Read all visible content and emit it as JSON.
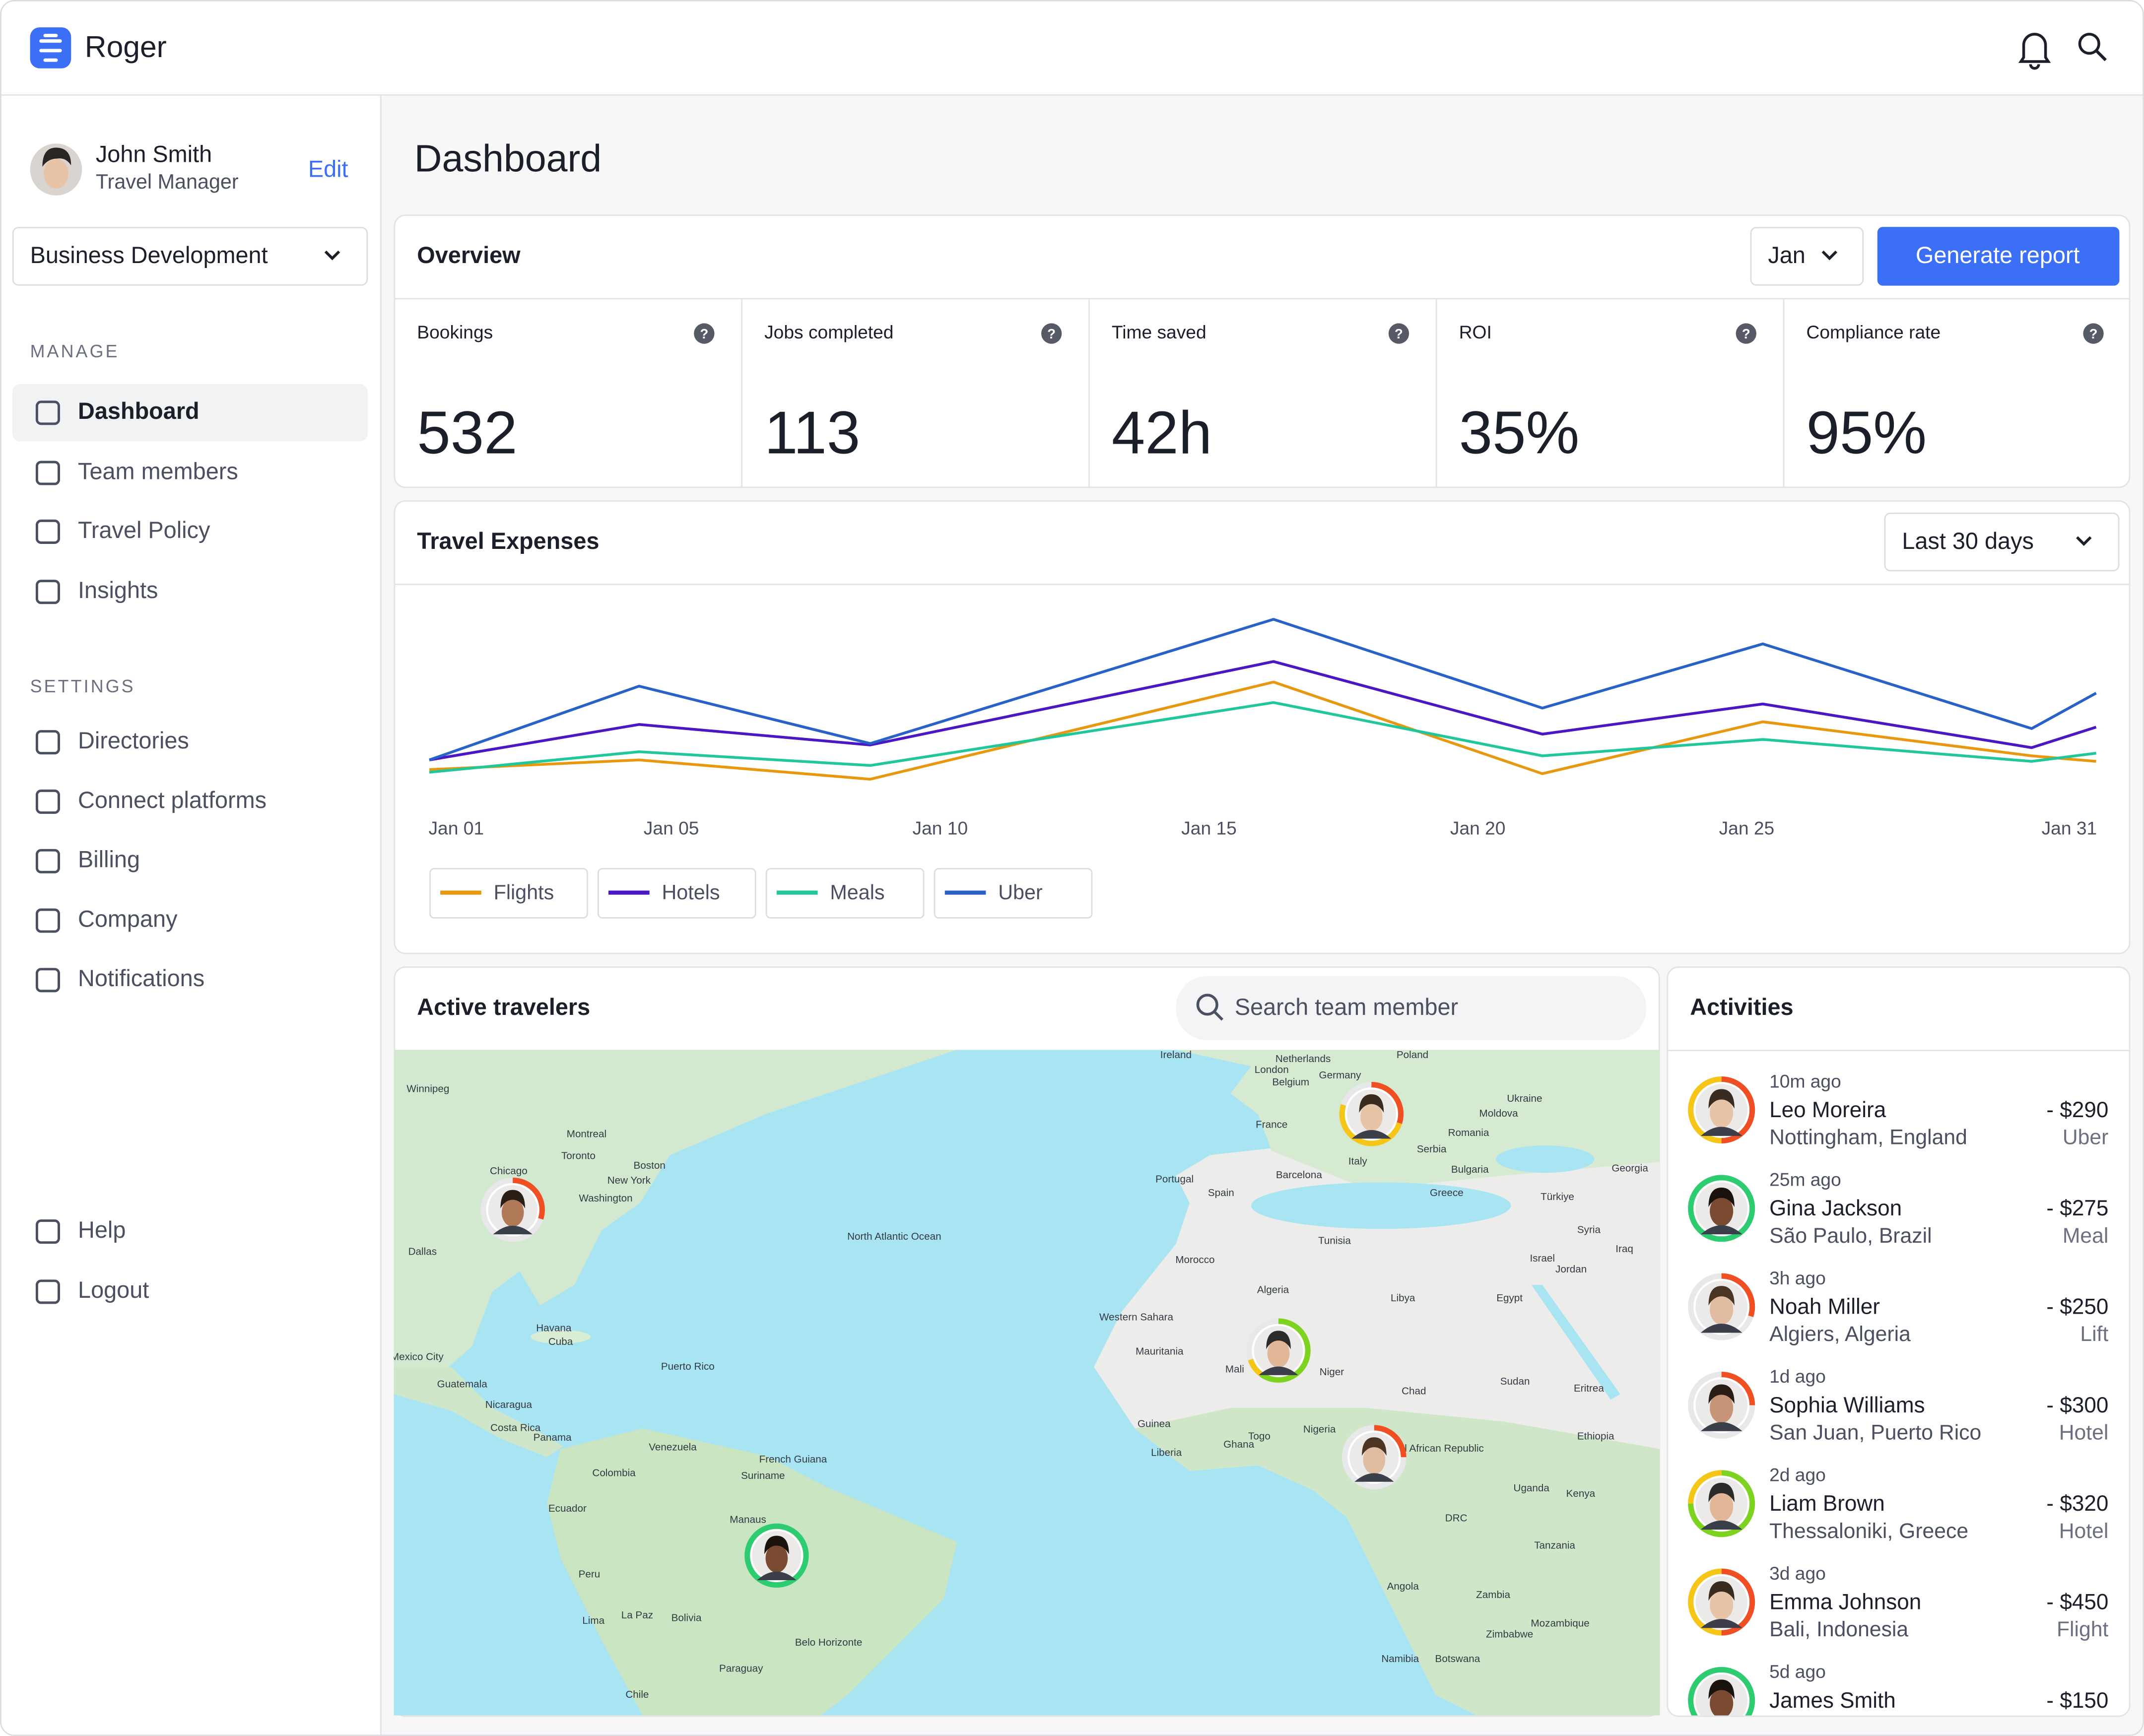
{
  "header": {
    "brand": "Roger"
  },
  "user": {
    "name": "John Smith",
    "role": "Travel Manager",
    "edit": "Edit"
  },
  "team_select": "Business Development",
  "nav": {
    "manage_heading": "MANAGE",
    "manage": [
      "Dashboard",
      "Team members",
      "Travel Policy",
      "Insights"
    ],
    "settings_heading": "SETTINGS",
    "settings": [
      "Directories",
      "Connect platforms",
      "Billing",
      "Company",
      "Notifications"
    ],
    "footer": [
      "Help",
      "Logout"
    ]
  },
  "page_title": "Dashboard",
  "overview": {
    "title": "Overview",
    "month": "Jan",
    "button": "Generate report",
    "stats": [
      {
        "label": "Bookings",
        "value": "532"
      },
      {
        "label": "Jobs completed",
        "value": "113"
      },
      {
        "label": "Time saved",
        "value": "42h"
      },
      {
        "label": "ROI",
        "value": "35%"
      },
      {
        "label": "Compliance rate",
        "value": "95%"
      }
    ]
  },
  "chart_data": {
    "type": "line",
    "title": "Travel Expenses",
    "period": "Last 30 days",
    "x": [
      0.5,
      4.4,
      8.7,
      16.2,
      21.2,
      25.3,
      30.3,
      31.5
    ],
    "xlim": [
      0.5,
      31.5
    ],
    "xticks": [
      {
        "value": 1,
        "label": "Jan 01"
      },
      {
        "value": 5,
        "label": "Jan 05"
      },
      {
        "value": 10,
        "label": "Jan 10"
      },
      {
        "value": 15,
        "label": "Jan 15"
      },
      {
        "value": 20,
        "label": "Jan 20"
      },
      {
        "value": 25,
        "label": "Jan 25"
      },
      {
        "value": 31,
        "label": "Jan 31"
      }
    ],
    "ylim": [
      0,
      100
    ],
    "series": [
      {
        "name": "Flights",
        "color": "#e8980e",
        "values": [
          18,
          22.7,
          13.3,
          60.7,
          16,
          41.3,
          24.7,
          22
        ]
      },
      {
        "name": "Hotels",
        "color": "#4b16c4",
        "values": [
          22.7,
          40,
          30,
          70.7,
          35.3,
          50,
          28.7,
          38.7
        ]
      },
      {
        "name": "Meals",
        "color": "#1fc79a",
        "values": [
          16.7,
          26.7,
          20,
          50.7,
          24.7,
          32.7,
          22,
          26
        ]
      },
      {
        "name": "Uber",
        "color": "#2862c8",
        "values": [
          22.7,
          58.7,
          30.7,
          91.3,
          48,
          79.3,
          38,
          55.3
        ]
      }
    ]
  },
  "travelers": {
    "title": "Active travelers",
    "search_placeholder": "Search team member",
    "map_labels": [
      "Ireland",
      "Netherlands",
      "Poland",
      "Germany",
      "Belgium",
      "London",
      "France",
      "Ukraine",
      "Moldova",
      "Romania",
      "Serbia",
      "Italy",
      "Bulgaria",
      "Portugal",
      "Spain",
      "Barcelona",
      "Greece",
      "Türkiye",
      "Georgia",
      "Syria",
      "Iraq",
      "Tunisia",
      "Morocco",
      "Israel",
      "Jordan",
      "Algeria",
      "Libya",
      "Egypt",
      "Western Sahara",
      "Mauritania",
      "Mali",
      "Niger",
      "Chad",
      "Sudan",
      "Eritrea",
      "Ethiopia",
      "Nigeria",
      "Ghana",
      "Togo",
      "Liberia",
      "Guinea",
      "Central African Republic",
      "Uganda",
      "Kenya",
      "DRC",
      "Tanzania",
      "Angola",
      "Zambia",
      "Namibia",
      "Botswana",
      "Zimbabwe",
      "Mozambique",
      "Winnipeg",
      "Montreal",
      "Toronto",
      "Chicago",
      "New York",
      "Boston",
      "Washington",
      "Dallas",
      "Havana",
      "Cuba",
      "Puerto Rico",
      "Mexico City",
      "Guatemala",
      "Nicaragua",
      "Costa Rica",
      "Panama",
      "Venezuela",
      "Colombia",
      "Suriname",
      "French Guiana",
      "Ecuador",
      "Manaus",
      "Peru",
      "Lima",
      "La Paz",
      "Bolivia",
      "Belo Horizonte",
      "Paraguay",
      "Chile",
      "North Atlantic Ocean"
    ]
  },
  "activities": {
    "title": "Activities",
    "items": [
      {
        "time": "10m ago",
        "name": "Leo Moreira",
        "place": "Nottingham, England",
        "amount": "- $290",
        "category": "Uber"
      },
      {
        "time": "25m ago",
        "name": "Gina Jackson",
        "place": "São Paulo, Brazil",
        "amount": "- $275",
        "category": "Meal"
      },
      {
        "time": "3h ago",
        "name": "Noah Miller",
        "place": "Algiers, Algeria",
        "amount": "- $250",
        "category": "Lift"
      },
      {
        "time": "1d ago",
        "name": "Sophia Williams",
        "place": "San Juan, Puerto Rico",
        "amount": "- $300",
        "category": "Hotel"
      },
      {
        "time": "2d ago",
        "name": "Liam Brown",
        "place": "Thessaloniki, Greece",
        "amount": "- $320",
        "category": "Hotel"
      },
      {
        "time": "3d ago",
        "name": "Emma Johnson",
        "place": "Bali, Indonesia",
        "amount": "- $450",
        "category": "Flight"
      },
      {
        "time": "5d ago",
        "name": "James Smith",
        "amount": "- $150"
      }
    ]
  }
}
